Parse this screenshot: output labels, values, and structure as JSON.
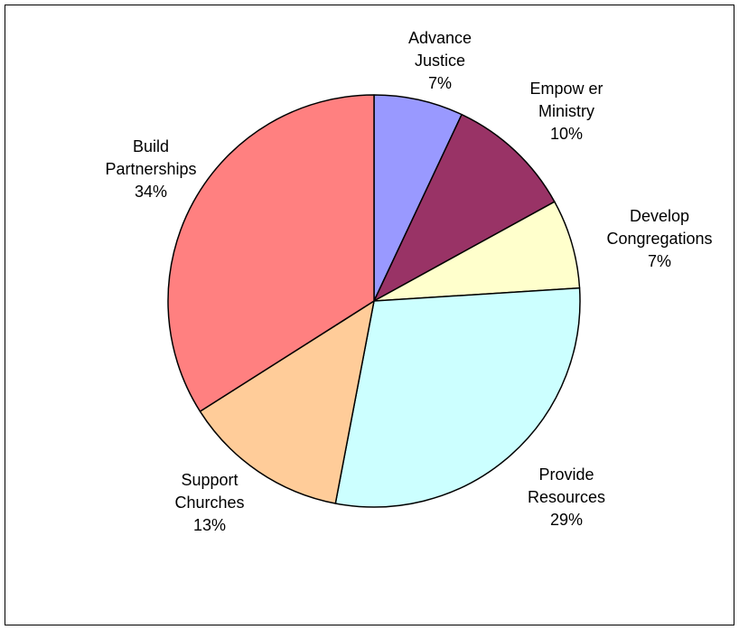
{
  "chart_data": {
    "type": "pie",
    "start_angle_deg": 90,
    "direction": "clockwise",
    "slices": [
      {
        "label_lines": [
          "Advance",
          "Justice"
        ],
        "value": 7,
        "pct_label": "7%",
        "color": "#9999FF"
      },
      {
        "label_lines": [
          "Empow er",
          "Ministry"
        ],
        "value": 10,
        "pct_label": "10%",
        "color": "#993366"
      },
      {
        "label_lines": [
          "Develop",
          "Congregations"
        ],
        "value": 7,
        "pct_label": "7%",
        "color": "#FFFFCC"
      },
      {
        "label_lines": [
          "Provide",
          "Resources"
        ],
        "value": 29,
        "pct_label": "29%",
        "color": "#CCFFFF"
      },
      {
        "label_lines": [
          "Support",
          "Churches"
        ],
        "value": 13,
        "pct_label": "13%",
        "color": "#FFCC99"
      },
      {
        "label_lines": [
          "Build",
          "Partnerships"
        ],
        "value": 34,
        "pct_label": "34%",
        "color": "#FF8080"
      }
    ],
    "slice_border_color": "#000000"
  }
}
